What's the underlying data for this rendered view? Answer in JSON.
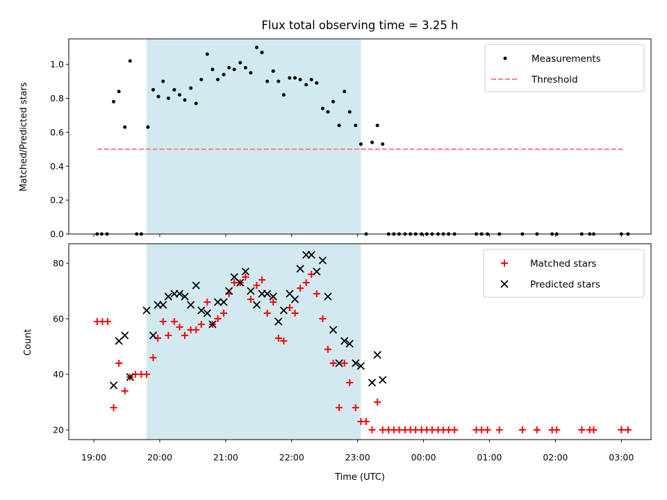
{
  "chart_data": [
    {
      "type": "scatter",
      "title": "Flux total observing time = 3.25 h",
      "xlabel": "",
      "ylabel": "Matched/Predicted stars",
      "ylim": [
        0,
        1.15
      ],
      "yticks": [
        0.0,
        0.2,
        0.4,
        0.6,
        0.8,
        1.0
      ],
      "ytick_labels": [
        "0.0",
        "0.2",
        "0.4",
        "0.6",
        "0.8",
        "1.0"
      ],
      "xlim": [
        18.62,
        27.45
      ],
      "shaded_interval": [
        19.8,
        23.05
      ],
      "shade_color": "#d3e9f0",
      "legend_position": "top-right",
      "series": [
        {
          "name": "Measurements",
          "marker": "dot",
          "color": "#000000",
          "points": [
            [
              19.05,
              0
            ],
            [
              19.12,
              0
            ],
            [
              19.2,
              0
            ],
            [
              19.3,
              0.78
            ],
            [
              19.38,
              0.84
            ],
            [
              19.47,
              0.63
            ],
            [
              19.55,
              1.02
            ],
            [
              19.65,
              0
            ],
            [
              19.72,
              0
            ],
            [
              19.82,
              0.63
            ],
            [
              19.9,
              0.85
            ],
            [
              19.98,
              0.81
            ],
            [
              20.05,
              0.9
            ],
            [
              20.13,
              0.8
            ],
            [
              20.22,
              0.85
            ],
            [
              20.3,
              0.82
            ],
            [
              20.38,
              0.79
            ],
            [
              20.47,
              0.86
            ],
            [
              20.55,
              0.77
            ],
            [
              20.63,
              0.91
            ],
            [
              20.72,
              1.06
            ],
            [
              20.8,
              0.97
            ],
            [
              20.88,
              0.91
            ],
            [
              20.97,
              0.94
            ],
            [
              21.05,
              0.98
            ],
            [
              21.13,
              0.97
            ],
            [
              21.22,
              1.01
            ],
            [
              21.3,
              0.98
            ],
            [
              21.38,
              0.95
            ],
            [
              21.47,
              1.1
            ],
            [
              21.55,
              1.07
            ],
            [
              21.63,
              0.9
            ],
            [
              21.72,
              0.96
            ],
            [
              21.8,
              0.9
            ],
            [
              21.88,
              0.82
            ],
            [
              21.97,
              0.92
            ],
            [
              22.05,
              0.92
            ],
            [
              22.13,
              0.91
            ],
            [
              22.22,
              0.88
            ],
            [
              22.3,
              0.91
            ],
            [
              22.38,
              0.89
            ],
            [
              22.47,
              0.74
            ],
            [
              22.55,
              0.72
            ],
            [
              22.63,
              0.78
            ],
            [
              22.72,
              0.64
            ],
            [
              22.8,
              0.84
            ],
            [
              22.88,
              0.72
            ],
            [
              22.97,
              0.64
            ],
            [
              23.05,
              0.53
            ],
            [
              23.13,
              0
            ],
            [
              23.22,
              0.54
            ],
            [
              23.3,
              0.64
            ],
            [
              23.38,
              0.53
            ],
            [
              23.47,
              0
            ],
            [
              23.55,
              0
            ],
            [
              23.63,
              0
            ],
            [
              23.72,
              0
            ],
            [
              23.8,
              0
            ],
            [
              23.88,
              0
            ],
            [
              23.97,
              0
            ],
            [
              24.05,
              0
            ],
            [
              24.13,
              0
            ],
            [
              24.22,
              0
            ],
            [
              24.3,
              0
            ],
            [
              24.38,
              0
            ],
            [
              24.47,
              0
            ],
            [
              24.8,
              0
            ],
            [
              24.88,
              0
            ],
            [
              24.97,
              0
            ],
            [
              25.15,
              0
            ],
            [
              25.5,
              0
            ],
            [
              25.72,
              0
            ],
            [
              25.95,
              0
            ],
            [
              26.02,
              0
            ],
            [
              26.4,
              0
            ],
            [
              26.52,
              0
            ],
            [
              26.58,
              0
            ],
            [
              27.0,
              0
            ],
            [
              27.1,
              0
            ]
          ]
        },
        {
          "name": "Threshold",
          "marker": "dashed-line",
          "color": "#ff7f7f",
          "points": [
            [
              19.05,
              0.5
            ],
            [
              27.05,
              0.5
            ]
          ]
        }
      ]
    },
    {
      "type": "scatter",
      "title": "",
      "xlabel": "Time (UTC)",
      "ylabel": "Count",
      "ylim": [
        16.5,
        87
      ],
      "yticks": [
        20,
        40,
        60,
        80
      ],
      "ytick_labels": [
        "20",
        "40",
        "60",
        "80"
      ],
      "xlim": [
        18.62,
        27.45
      ],
      "xticks": [
        19,
        20,
        21,
        22,
        23,
        24,
        25,
        26,
        27
      ],
      "xtick_labels": [
        "19:00",
        "20:00",
        "21:00",
        "22:00",
        "23:00",
        "00:00",
        "01:00",
        "02:00",
        "03:00"
      ],
      "shaded_interval": [
        19.8,
        23.05
      ],
      "shade_color": "#d3e9f0",
      "legend_position": "top-right",
      "series": [
        {
          "name": "Matched stars",
          "marker": "plus",
          "color": "#ff0000",
          "points": [
            [
              19.05,
              59
            ],
            [
              19.13,
              59
            ],
            [
              19.21,
              59
            ],
            [
              19.3,
              28
            ],
            [
              19.38,
              44
            ],
            [
              19.47,
              34
            ],
            [
              19.55,
              39
            ],
            [
              19.63,
              40
            ],
            [
              19.72,
              40
            ],
            [
              19.8,
              40
            ],
            [
              19.9,
              46
            ],
            [
              19.97,
              53
            ],
            [
              20.05,
              59
            ],
            [
              20.13,
              54
            ],
            [
              20.22,
              59
            ],
            [
              20.3,
              57
            ],
            [
              20.38,
              54
            ],
            [
              20.47,
              56
            ],
            [
              20.55,
              56
            ],
            [
              20.63,
              58
            ],
            [
              20.72,
              66
            ],
            [
              20.8,
              58
            ],
            [
              20.88,
              60
            ],
            [
              20.97,
              62
            ],
            [
              21.05,
              69
            ],
            [
              21.13,
              73
            ],
            [
              21.22,
              73
            ],
            [
              21.3,
              75
            ],
            [
              21.38,
              67
            ],
            [
              21.47,
              72
            ],
            [
              21.55,
              74
            ],
            [
              21.63,
              62
            ],
            [
              21.72,
              66
            ],
            [
              21.8,
              53
            ],
            [
              21.88,
              52
            ],
            [
              21.97,
              64
            ],
            [
              22.05,
              62
            ],
            [
              22.13,
              71
            ],
            [
              22.22,
              73
            ],
            [
              22.3,
              76
            ],
            [
              22.38,
              69
            ],
            [
              22.47,
              60
            ],
            [
              22.55,
              49
            ],
            [
              22.63,
              44
            ],
            [
              22.72,
              28
            ],
            [
              22.8,
              44
            ],
            [
              22.88,
              37
            ],
            [
              22.97,
              28
            ],
            [
              23.05,
              23
            ],
            [
              23.13,
              23
            ],
            [
              23.22,
              20
            ],
            [
              23.3,
              30
            ],
            [
              23.38,
              20
            ],
            [
              23.47,
              20
            ],
            [
              23.55,
              20
            ],
            [
              23.63,
              20
            ],
            [
              23.72,
              20
            ],
            [
              23.8,
              20
            ],
            [
              23.88,
              20
            ],
            [
              23.97,
              20
            ],
            [
              24.05,
              20
            ],
            [
              24.13,
              20
            ],
            [
              24.22,
              20
            ],
            [
              24.3,
              20
            ],
            [
              24.38,
              20
            ],
            [
              24.47,
              20
            ],
            [
              24.8,
              20
            ],
            [
              24.88,
              20
            ],
            [
              24.97,
              20
            ],
            [
              25.15,
              20
            ],
            [
              25.5,
              20
            ],
            [
              25.72,
              20
            ],
            [
              25.95,
              20
            ],
            [
              26.02,
              20
            ],
            [
              26.4,
              20
            ],
            [
              26.52,
              20
            ],
            [
              26.58,
              20
            ],
            [
              27.0,
              20
            ],
            [
              27.1,
              20
            ]
          ]
        },
        {
          "name": "Predicted stars",
          "marker": "x",
          "color": "#000000",
          "points": [
            [
              19.3,
              36
            ],
            [
              19.38,
              52
            ],
            [
              19.47,
              54
            ],
            [
              19.55,
              39
            ],
            [
              19.8,
              63
            ],
            [
              19.9,
              54
            ],
            [
              19.97,
              65
            ],
            [
              20.05,
              65
            ],
            [
              20.13,
              68
            ],
            [
              20.22,
              69
            ],
            [
              20.3,
              69
            ],
            [
              20.38,
              68
            ],
            [
              20.47,
              65
            ],
            [
              20.55,
              72
            ],
            [
              20.63,
              63
            ],
            [
              20.72,
              62
            ],
            [
              20.8,
              58
            ],
            [
              20.88,
              66
            ],
            [
              20.97,
              66
            ],
            [
              21.05,
              70
            ],
            [
              21.13,
              75
            ],
            [
              21.22,
              73
            ],
            [
              21.3,
              77
            ],
            [
              21.38,
              70
            ],
            [
              21.47,
              65
            ],
            [
              21.55,
              69
            ],
            [
              21.63,
              69
            ],
            [
              21.72,
              68
            ],
            [
              21.8,
              59
            ],
            [
              21.88,
              63
            ],
            [
              21.97,
              69
            ],
            [
              22.05,
              67
            ],
            [
              22.13,
              78
            ],
            [
              22.22,
              83
            ],
            [
              22.3,
              83
            ],
            [
              22.38,
              77
            ],
            [
              22.47,
              81
            ],
            [
              22.55,
              68
            ],
            [
              22.63,
              56
            ],
            [
              22.72,
              44
            ],
            [
              22.8,
              52
            ],
            [
              22.88,
              51
            ],
            [
              22.97,
              44
            ],
            [
              23.05,
              43
            ],
            [
              23.22,
              37
            ],
            [
              23.3,
              47
            ],
            [
              23.38,
              38
            ]
          ]
        }
      ]
    }
  ]
}
